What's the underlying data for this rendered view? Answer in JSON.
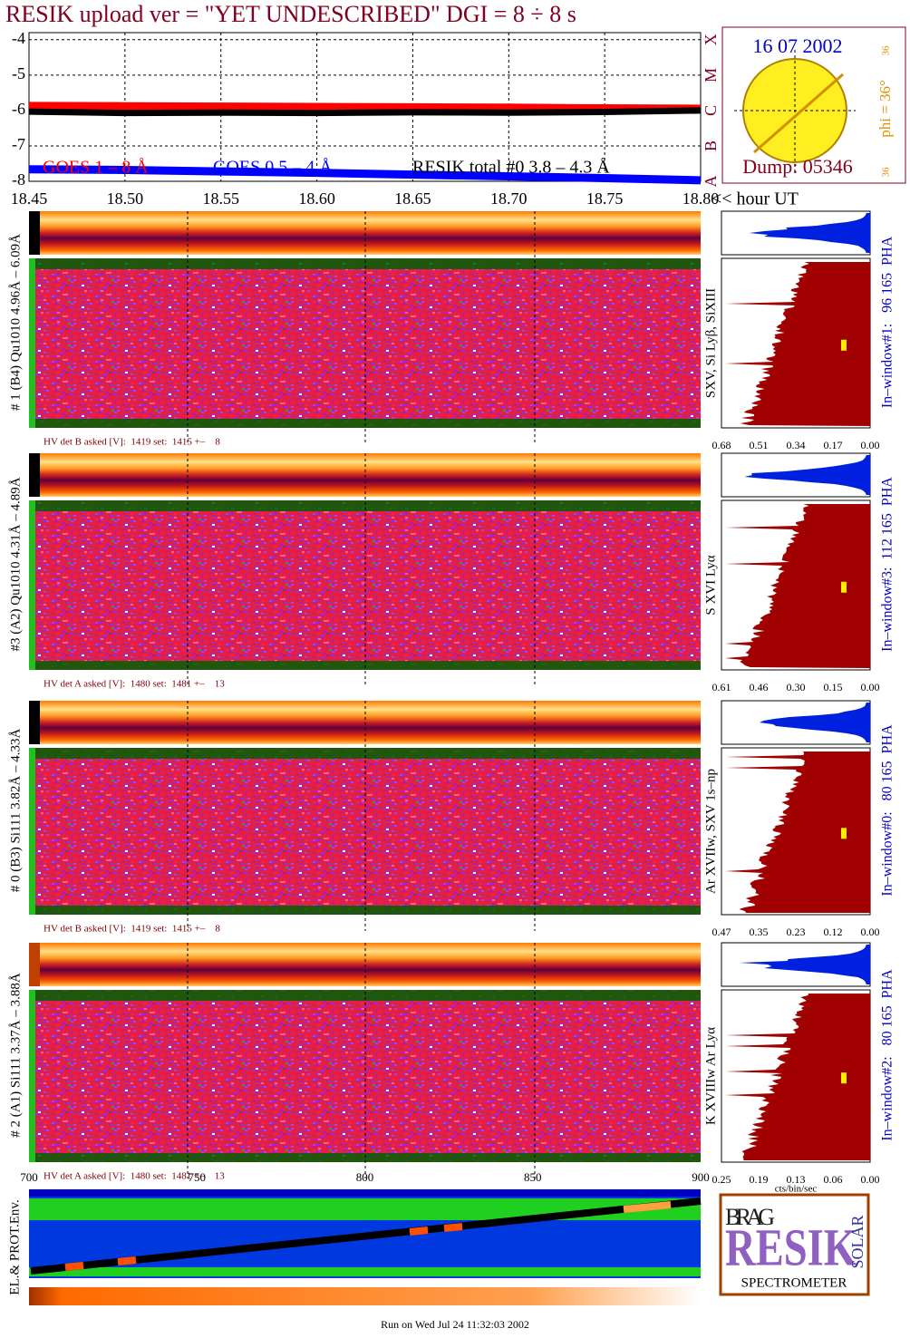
{
  "header": {
    "title": "RESIK upload ver = \"YET UNDESCRIBED\"  DGI =   8 ÷   8 s"
  },
  "chart_data": {
    "type": "line",
    "x": [
      18.45,
      18.5,
      18.55,
      18.6,
      18.65,
      18.7,
      18.75,
      18.8
    ],
    "xlim": [
      18.45,
      18.8
    ],
    "xticks": [
      18.45,
      {
        "value": 18.5,
        "label": "18.50"
      },
      18.55,
      {
        "value": 18.6,
        "label": "18.60"
      },
      18.65,
      {
        "value": 18.7,
        "label": "18.70"
      },
      18.75,
      {
        "value": 18.8,
        "label": "18.80"
      }
    ],
    "x_label": "<< hour UT",
    "ylim": [
      -8,
      -3.8
    ],
    "yticks": [
      -8,
      -7,
      -6,
      -5,
      -4
    ],
    "y2lim": [
      -8,
      -3.8
    ],
    "y2ticks": [
      {
        "value": -8,
        "label": "A"
      },
      {
        "value": -7,
        "label": "B"
      },
      {
        "value": -6,
        "label": "C"
      },
      {
        "value": -5,
        "label": "M"
      },
      {
        "value": -4,
        "label": "X"
      }
    ],
    "grid": true,
    "legend": "bottom",
    "series": [
      {
        "name": "GOES 1 – 8 Å",
        "color": "#ff0000",
        "values": [
          -5.87,
          -5.88,
          -5.89,
          -5.9,
          -5.91,
          -5.92,
          -5.94,
          -5.95
        ]
      },
      {
        "name": "GOES 0.5 – 4 Å",
        "color": "#0000ff",
        "values": [
          -7.66,
          -7.68,
          -7.72,
          -7.76,
          -7.81,
          -7.86,
          -7.91,
          -7.97
        ]
      },
      {
        "name": "RESIK total #0  3.8 – 4.3 Å",
        "color": "#000000",
        "values": [
          -6.03,
          -6.07,
          -6.06,
          -6.07,
          -6.05,
          -6.06,
          -6.04,
          -6.0
        ]
      }
    ]
  },
  "sun": {
    "date": "16 07 2002",
    "phi": "phi = 36°",
    "lat_top": "36",
    "lat_bottom": "36",
    "dump": "Dump: 05346"
  },
  "panels": [
    {
      "left_label": "# 1 (B4) Qu1010 4.96Å – 6.09Å",
      "right_label": "SXV, Si Lyβ, SiXIII",
      "pha_label": "In–window#1:   96 165  PHA",
      "hv": "HV det B asked [V]:  1419 set:  1415 +–    8",
      "hist_ticks": [
        "0.68",
        "0.51",
        "0.34",
        "0.17",
        "0.00"
      ]
    },
    {
      "left_label": "#3 (A2) Qu1010  4.31Å – 4.89Å",
      "right_label": "S XVI Lyα",
      "pha_label": "In–window#3:  112 165  PHA",
      "hv": "HV det A asked [V]:  1480 set:  1481 +–    13",
      "hist_ticks": [
        "0.61",
        "0.46",
        "0.30",
        "0.15",
        "0.00"
      ]
    },
    {
      "left_label": "# 0 (B3) Si111  3.82Å – 4.33Å",
      "right_label": "Ar XVIIw, SXV 1s–np",
      "pha_label": "In–window#0:   80 165  PHA",
      "hv": "HV det B asked [V]:  1419 set:  1415 +–    8",
      "hist_ticks": [
        "0.47",
        "0.35",
        "0.23",
        "0.12",
        "0.00"
      ]
    },
    {
      "left_label": "# 2 (A1) Si111  3.37Å – 3.88Å",
      "right_label": "K XVIIIw  Ar Lyα",
      "pha_label": "In–window#2:   80 165  PHA",
      "hv": "HV det A asked [V]:  1480 set:  1481 +–    13",
      "hist_ticks": [
        "0.25",
        "0.19",
        "0.13",
        "0.06",
        "0.00"
      ]
    }
  ],
  "hist_unit": "cts/bin/sec",
  "bottom_axis": {
    "xlim": [
      700,
      900
    ],
    "xticks": [
      700,
      750,
      800,
      850,
      900
    ]
  },
  "env_label": "EL.& PROT.Env.",
  "logo": {
    "brag": "BRAG",
    "resik": "RESIK",
    "solar": "SOLAR",
    "spectrometer": "SPECTROMETER"
  },
  "footer": "Run on Wed Jul 24 11:32:03 2002"
}
